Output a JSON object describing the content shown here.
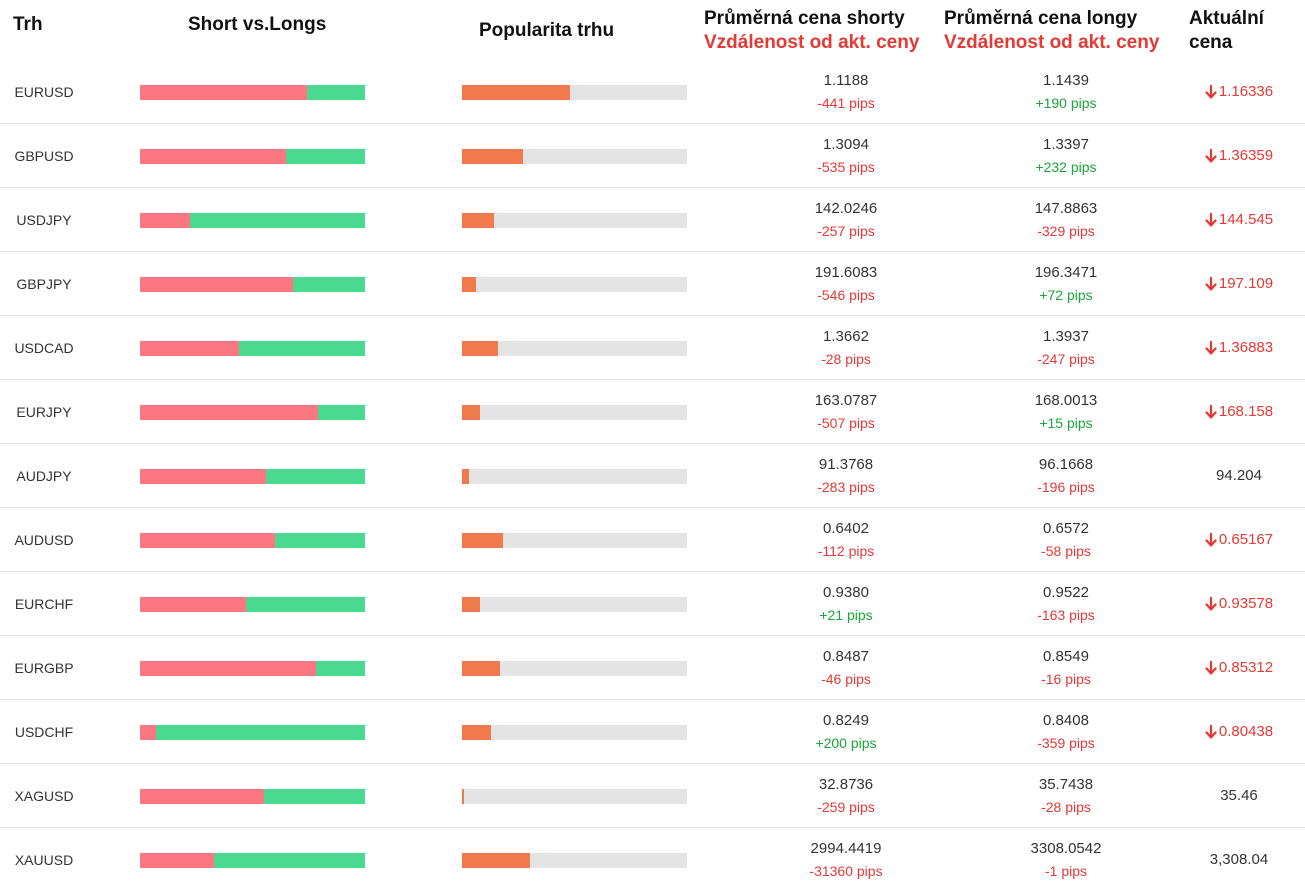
{
  "header": {
    "market": "Trh",
    "short_vs_longs": "Short vs.Longs",
    "popularity": "Popularita trhu",
    "avg_short": "Průměrná cena shorty",
    "avg_short_sub": "Vzdálenost od akt. ceny",
    "avg_long": "Průměrná cena longy",
    "avg_long_sub": "Vzdálenost od akt. ceny",
    "current_line1": "Aktuální",
    "current_line2": "cena"
  },
  "colors": {
    "short": "#fd7782",
    "long": "#4ad98e",
    "popularity": "#f07a4b",
    "track": "#e4e4e4",
    "negative": "#e53935",
    "positive": "#1aa63b"
  },
  "rows": [
    {
      "symbol": "EURUSD",
      "short_pct": 74,
      "popularity_pct": 48,
      "avg_short": "1.1188",
      "avg_short_pips": "-441 pips",
      "avg_long": "1.1439",
      "avg_long_pips": "+190 pips",
      "current": "1.16336",
      "direction": "down"
    },
    {
      "symbol": "GBPUSD",
      "short_pct": 65,
      "popularity_pct": 27,
      "avg_short": "1.3094",
      "avg_short_pips": "-535 pips",
      "avg_long": "1.3397",
      "avg_long_pips": "+232 pips",
      "current": "1.36359",
      "direction": "down"
    },
    {
      "symbol": "USDJPY",
      "short_pct": 22,
      "popularity_pct": 14,
      "avg_short": "142.0246",
      "avg_short_pips": "-257 pips",
      "avg_long": "147.8863",
      "avg_long_pips": "-329 pips",
      "current": "144.545",
      "direction": "down"
    },
    {
      "symbol": "GBPJPY",
      "short_pct": 68,
      "popularity_pct": 6,
      "avg_short": "191.6083",
      "avg_short_pips": "-546 pips",
      "avg_long": "196.3471",
      "avg_long_pips": "+72 pips",
      "current": "197.109",
      "direction": "down"
    },
    {
      "symbol": "USDCAD",
      "short_pct": 44,
      "popularity_pct": 16,
      "avg_short": "1.3662",
      "avg_short_pips": "-28 pips",
      "avg_long": "1.3937",
      "avg_long_pips": "-247 pips",
      "current": "1.36883",
      "direction": "down"
    },
    {
      "symbol": "EURJPY",
      "short_pct": 79,
      "popularity_pct": 8,
      "avg_short": "163.0787",
      "avg_short_pips": "-507 pips",
      "avg_long": "168.0013",
      "avg_long_pips": "+15 pips",
      "current": "168.158",
      "direction": "down"
    },
    {
      "symbol": "AUDJPY",
      "short_pct": 56,
      "popularity_pct": 3,
      "avg_short": "91.3768",
      "avg_short_pips": "-283 pips",
      "avg_long": "96.1668",
      "avg_long_pips": "-196 pips",
      "current": "94.204",
      "direction": "flat"
    },
    {
      "symbol": "AUDUSD",
      "short_pct": 60,
      "popularity_pct": 18,
      "avg_short": "0.6402",
      "avg_short_pips": "-112 pips",
      "avg_long": "0.6572",
      "avg_long_pips": "-58 pips",
      "current": "0.65167",
      "direction": "down"
    },
    {
      "symbol": "EURCHF",
      "short_pct": 47,
      "popularity_pct": 8,
      "avg_short": "0.9380",
      "avg_short_pips": "+21 pips",
      "avg_long": "0.9522",
      "avg_long_pips": "-163 pips",
      "current": "0.93578",
      "direction": "down"
    },
    {
      "symbol": "EURGBP",
      "short_pct": 78,
      "popularity_pct": 17,
      "avg_short": "0.8487",
      "avg_short_pips": "-46 pips",
      "avg_long": "0.8549",
      "avg_long_pips": "-16 pips",
      "current": "0.85312",
      "direction": "down"
    },
    {
      "symbol": "USDCHF",
      "short_pct": 7,
      "popularity_pct": 13,
      "avg_short": "0.8249",
      "avg_short_pips": "+200 pips",
      "avg_long": "0.8408",
      "avg_long_pips": "-359 pips",
      "current": "0.80438",
      "direction": "down"
    },
    {
      "symbol": "XAGUSD",
      "short_pct": 55,
      "popularity_pct": 1,
      "avg_short": "32.8736",
      "avg_short_pips": "-259 pips",
      "avg_long": "35.7438",
      "avg_long_pips": "-28 pips",
      "current": "35.46",
      "direction": "flat"
    },
    {
      "symbol": "XAUUSD",
      "short_pct": 33,
      "popularity_pct": 30,
      "avg_short": "2994.4419",
      "avg_short_pips": "-31360 pips",
      "avg_long": "3308.0542",
      "avg_long_pips": "-1 pips",
      "current": "3,308.04",
      "direction": "flat"
    }
  ],
  "icons": {
    "down": "arrow-down-icon"
  }
}
